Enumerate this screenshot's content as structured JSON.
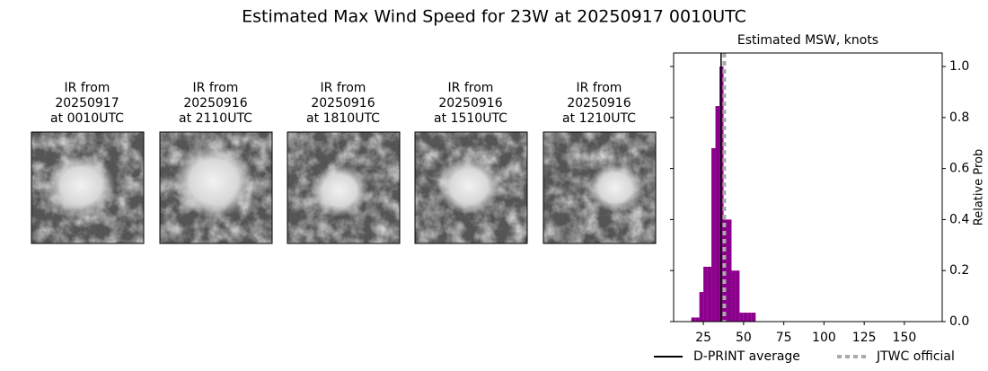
{
  "title": "Estimated Max Wind Speed for 23W at 20250917 0010UTC",
  "panels": [
    {
      "caption": [
        "IR from",
        "20250917",
        "at 0010UTC"
      ]
    },
    {
      "caption": [
        "IR from",
        "20250916",
        "at 2110UTC"
      ]
    },
    {
      "caption": [
        "IR from",
        "20250916",
        "at 1810UTC"
      ]
    },
    {
      "caption": [
        "IR from",
        "20250916",
        "at 1510UTC"
      ]
    },
    {
      "caption": [
        "IR from",
        "20250916",
        "at 1210UTC"
      ]
    }
  ],
  "chart_data": {
    "type": "histogram",
    "title": "Estimated MSW, knots",
    "y_label": "Relative Prob",
    "bins": [
      17.5,
      20,
      22.5,
      25,
      27.5,
      30,
      32.5,
      35,
      37.5,
      40,
      42.5,
      45,
      47.5,
      50,
      52.5,
      55,
      57.5
    ],
    "counts": [
      0.016,
      0.016,
      0.116,
      0.215,
      0.215,
      0.68,
      0.845,
      1.0,
      0.4,
      0.4,
      0.2,
      0.2,
      0.035,
      0.035,
      0.035,
      0.035
    ],
    "color": "#8b008b",
    "xlim": [
      6.5,
      173.5
    ],
    "xticks": [
      25,
      50,
      75,
      100,
      125,
      150
    ],
    "ylim": [
      0,
      1.053
    ],
    "yticks": [
      {
        "value": 0,
        "label": "0.0"
      },
      0.2,
      0.4,
      0.6,
      0.8,
      {
        "value": 1,
        "label": "1.0"
      }
    ],
    "y_axis_side": "right",
    "lines": [
      {
        "name": "D-PRINT average",
        "value": 36,
        "color": "#000000",
        "style": "solid"
      },
      {
        "name": "JTWC official",
        "value": 38,
        "color": "#aaaaaa",
        "style": "dotted"
      }
    ],
    "legend": "bottom"
  }
}
